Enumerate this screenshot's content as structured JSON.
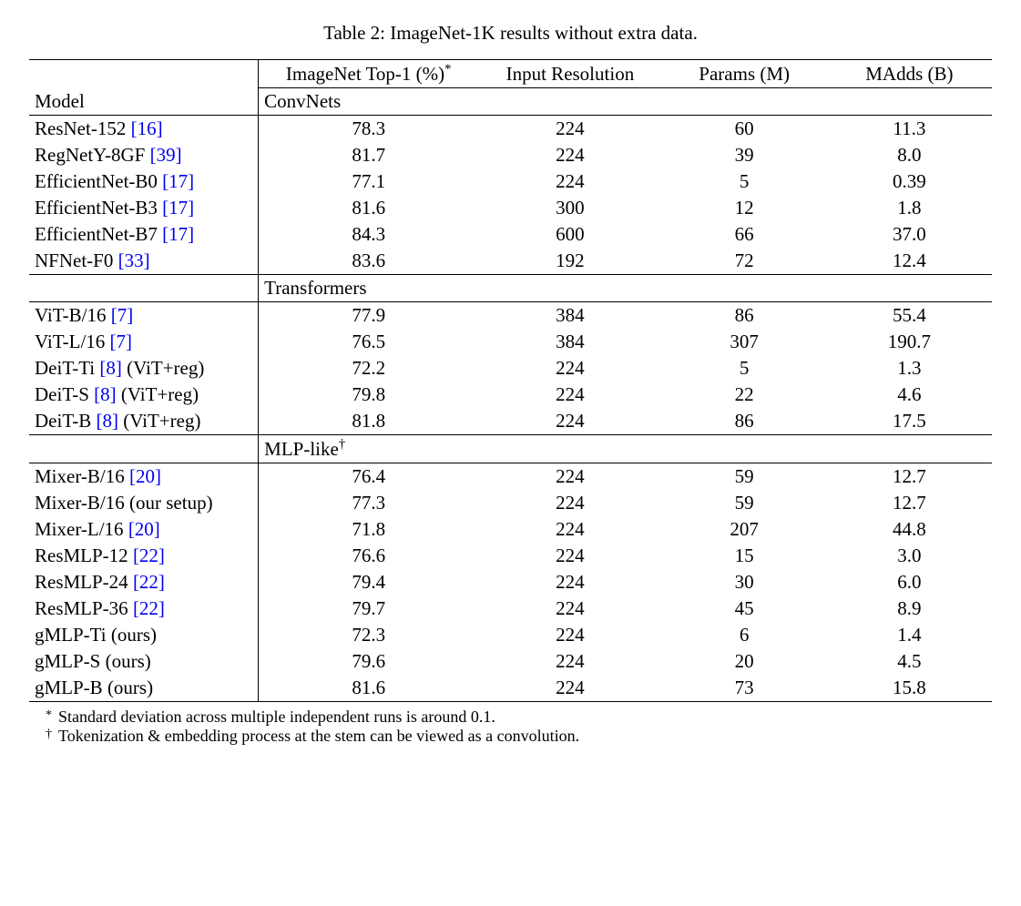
{
  "caption": "Table 2: ImageNet-1K results without extra data.",
  "columns": {
    "model": "Model",
    "top1": "ImageNet Top-1 (%)",
    "top1_sup": "*",
    "res": "Input Resolution",
    "params": "Params (M)",
    "madds": "MAdds (B)"
  },
  "sections": [
    {
      "label": "ConvNets",
      "rows": [
        {
          "name": "ResNet-152",
          "cite": "[16]",
          "suffix": "",
          "top1": "78.3",
          "res": "224",
          "params": "60",
          "madds": "11.3"
        },
        {
          "name": "RegNetY-8GF",
          "cite": "[39]",
          "suffix": "",
          "top1": "81.7",
          "res": "224",
          "params": "39",
          "madds": "8.0"
        },
        {
          "name": "EfficientNet-B0",
          "cite": "[17]",
          "suffix": "",
          "top1": "77.1",
          "res": "224",
          "params": "5",
          "madds": "0.39"
        },
        {
          "name": "EfficientNet-B3",
          "cite": "[17]",
          "suffix": "",
          "top1": "81.6",
          "res": "300",
          "params": "12",
          "madds": "1.8"
        },
        {
          "name": "EfficientNet-B7",
          "cite": "[17]",
          "suffix": "",
          "top1": "84.3",
          "res": "600",
          "params": "66",
          "madds": "37.0"
        },
        {
          "name": "NFNet-F0",
          "cite": "[33]",
          "suffix": "",
          "top1": "83.6",
          "res": "192",
          "params": "72",
          "madds": "12.4"
        }
      ]
    },
    {
      "label": "Transformers",
      "rows": [
        {
          "name": "ViT-B/16",
          "cite": "[7]",
          "suffix": "",
          "top1": "77.9",
          "res": "384",
          "params": "86",
          "madds": "55.4"
        },
        {
          "name": "ViT-L/16",
          "cite": "[7]",
          "suffix": "",
          "top1": "76.5",
          "res": "384",
          "params": "307",
          "madds": "190.7"
        },
        {
          "name": "DeiT-Ti",
          "cite": "[8]",
          "suffix": " (ViT+reg)",
          "top1": "72.2",
          "res": "224",
          "params": "5",
          "madds": "1.3"
        },
        {
          "name": "DeiT-S",
          "cite": "[8]",
          "suffix": " (ViT+reg)",
          "top1": "79.8",
          "res": "224",
          "params": "22",
          "madds": "4.6"
        },
        {
          "name": "DeiT-B",
          "cite": "[8]",
          "suffix": " (ViT+reg)",
          "top1": "81.8",
          "res": "224",
          "params": "86",
          "madds": "17.5"
        }
      ]
    },
    {
      "label": "MLP-like",
      "label_sup": "†",
      "rows": [
        {
          "name": "Mixer-B/16",
          "cite": "[20]",
          "suffix": "",
          "top1": "76.4",
          "res": "224",
          "params": "59",
          "madds": "12.7"
        },
        {
          "name": "Mixer-B/16",
          "cite": "",
          "suffix": " (our setup)",
          "top1": "77.3",
          "res": "224",
          "params": "59",
          "madds": "12.7"
        },
        {
          "name": "Mixer-L/16",
          "cite": "[20]",
          "suffix": "",
          "top1": "71.8",
          "res": "224",
          "params": "207",
          "madds": "44.8"
        },
        {
          "name": "ResMLP-12",
          "cite": "[22]",
          "suffix": "",
          "top1": "76.6",
          "res": "224",
          "params": "15",
          "madds": "3.0"
        },
        {
          "name": "ResMLP-24",
          "cite": "[22]",
          "suffix": "",
          "top1": "79.4",
          "res": "224",
          "params": "30",
          "madds": "6.0"
        },
        {
          "name": "ResMLP-36",
          "cite": "[22]",
          "suffix": "",
          "top1": "79.7",
          "res": "224",
          "params": "45",
          "madds": "8.9"
        },
        {
          "name": "gMLP-Ti",
          "cite": "",
          "suffix": " (ours)",
          "top1": "72.3",
          "res": "224",
          "params": "6",
          "madds": "1.4"
        },
        {
          "name": "gMLP-S",
          "cite": "",
          "suffix": " (ours)",
          "top1": "79.6",
          "res": "224",
          "params": "20",
          "madds": "4.5"
        },
        {
          "name": "gMLP-B",
          "cite": "",
          "suffix": " (ours)",
          "top1": "81.6",
          "res": "224",
          "params": "73",
          "madds": "15.8"
        }
      ]
    }
  ],
  "footnotes": [
    {
      "marker": "*",
      "text": "Standard deviation across multiple independent runs is around 0.1."
    },
    {
      "marker": "†",
      "text": "Tokenization & embedding process at the stem can be viewed as a convolution."
    }
  ]
}
